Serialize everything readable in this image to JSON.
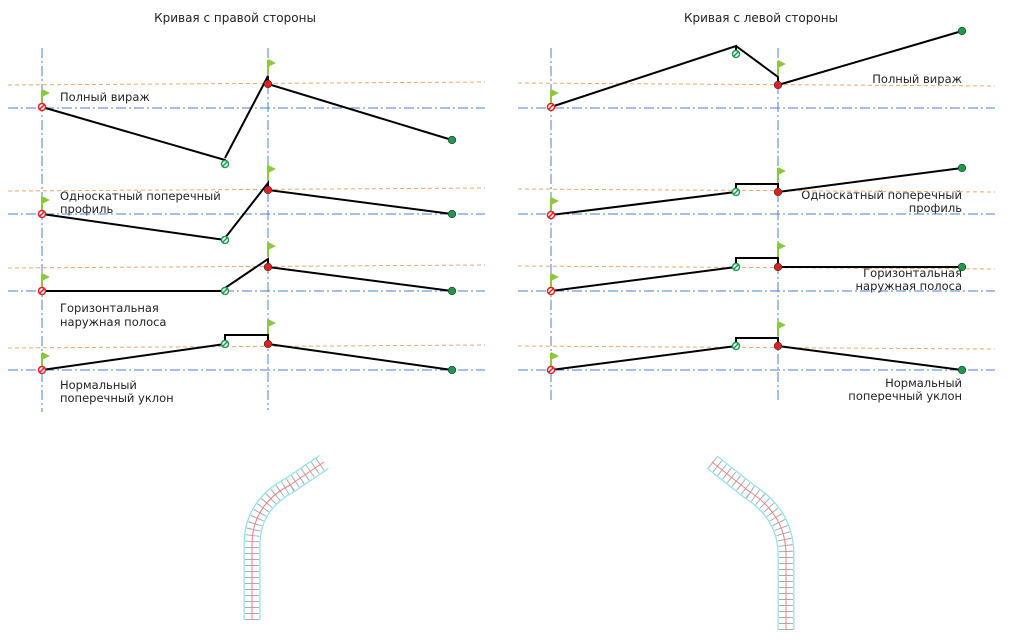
{
  "left_panel": {
    "title": "Кривая с правой стороны",
    "rows": [
      {
        "label_lines": [
          "Полный вираж"
        ]
      },
      {
        "label_lines": [
          "Односкатный поперечный",
          "профиль"
        ]
      },
      {
        "label_lines": [
          "Горизонтальная",
          "наружная полоса"
        ]
      },
      {
        "label_lines": [
          "Нормальный",
          "поперечный уклон"
        ]
      }
    ]
  },
  "right_panel": {
    "title": "Кривая с левой стороны",
    "rows": [
      {
        "label_lines": [
          "Полный вираж"
        ]
      },
      {
        "label_lines": [
          "Односкатный поперечный",
          "профиль"
        ]
      },
      {
        "label_lines": [
          "Горизонтальная",
          "наружная полоса"
        ]
      },
      {
        "label_lines": [
          "Нормальный",
          "поперечный уклон"
        ]
      }
    ]
  },
  "colors": {
    "axis_line": "#4a7fd0",
    "reference_line": "#f4a56a",
    "profile_line": "#000000",
    "flag": "#8dc63f",
    "start_marker": "#e02020",
    "end_marker": "#1a9a4a",
    "road_edge": "#8fe0f0",
    "centerline": "#f08080"
  }
}
